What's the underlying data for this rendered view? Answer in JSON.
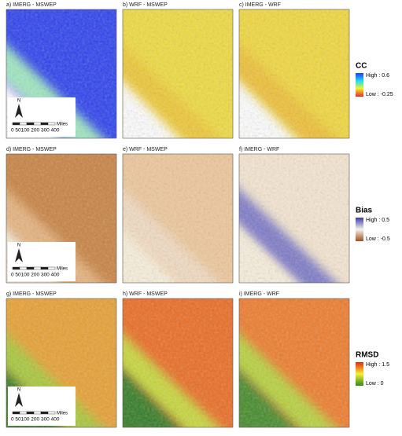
{
  "figure": {
    "rows": [
      {
        "panels": [
          "a) IMERG - MSWEP",
          "b) WRF - MSWEP",
          "c) IMERG - WRF"
        ],
        "legend": {
          "title": "CC",
          "high": "High : 0.6",
          "low": "Low : -0.25"
        }
      },
      {
        "panels": [
          "d) IMERG - MSWEP",
          "e) WRF - MSWEP",
          "f) IMERG - WRF"
        ],
        "legend": {
          "title": "Bias",
          "high": "High : 0.5",
          "low": "Low : -0.5"
        }
      },
      {
        "panels": [
          "g) IMERG - MSWEP",
          "h) WRF - MSWEP",
          "i) IMERG - WRF"
        ],
        "legend": {
          "title": "RMSD",
          "high": "High : 1.5",
          "low": "Low : 0"
        }
      }
    ],
    "scale_bar": {
      "ticks": "0 50100 200 300 400",
      "unit": "Miles",
      "north": "N"
    }
  }
}
